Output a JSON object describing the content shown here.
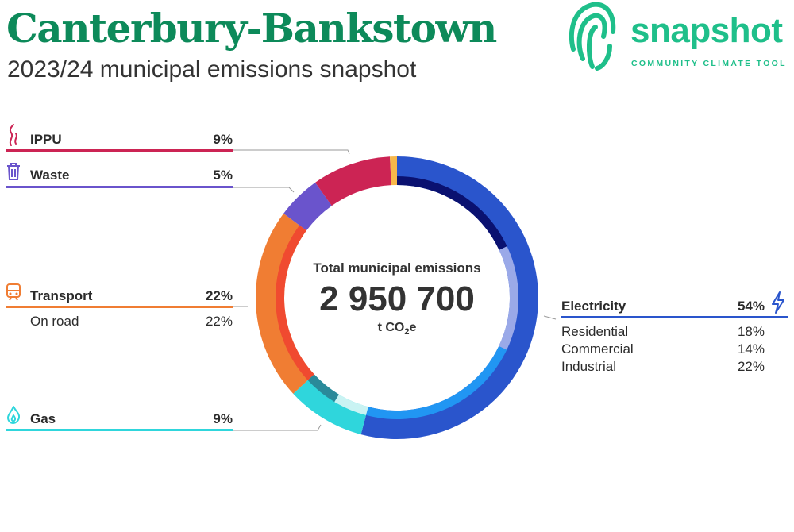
{
  "header": {
    "title": "Canterbury-Bankstown",
    "subtitle": "2023/24 municipal emissions snapshot"
  },
  "logo": {
    "word": "snapshot",
    "tagline": "COMMUNITY CLIMATE TOOL"
  },
  "chart_data": {
    "type": "pie",
    "total_caption": "Total municipal emissions",
    "total_value": "2 950 700",
    "total_unit_prefix": "t CO",
    "total_unit_sub": "2",
    "total_unit_suffix": "e",
    "categories": [
      {
        "name": "Electricity",
        "value_label": "54%",
        "value": 54,
        "color": "#2a55cc",
        "subs": [
          {
            "name": "Residential",
            "value_label": "18%",
            "value": 18,
            "color": "#0a1170"
          },
          {
            "name": "Commercial",
            "value_label": "14%",
            "value": 14,
            "color": "#9aa9e8"
          },
          {
            "name": "Industrial",
            "value_label": "22%",
            "value": 22,
            "color": "#2196f3"
          }
        ]
      },
      {
        "name": "Gas",
        "value_label": "9%",
        "value": 9,
        "color": "#2fd6dc",
        "subs": [
          {
            "name": "",
            "value": 4.5,
            "color": "#c9f3f3"
          },
          {
            "name": "",
            "value": 4.5,
            "color": "#2a8a9a"
          }
        ]
      },
      {
        "name": "Transport",
        "value_label": "22%",
        "value": 22,
        "color": "#f07d33",
        "subs": [
          {
            "name": "On road",
            "value_label": "22%",
            "value": 22,
            "color": "#f04a30"
          }
        ]
      },
      {
        "name": "Waste",
        "value_label": "5%",
        "value": 5,
        "color": "#6a54cc",
        "subs": []
      },
      {
        "name": "IPPU",
        "value_label": "9%",
        "value": 9,
        "color": "#cc2454",
        "subs": []
      },
      {
        "name": "",
        "value": 0.8,
        "color": "#f7b84a",
        "subs": []
      }
    ]
  },
  "icons": {
    "ippu": "smoke-icon",
    "waste": "bin-icon",
    "transport": "train-icon",
    "gas": "flame-icon",
    "electricity": "lightning-icon"
  }
}
